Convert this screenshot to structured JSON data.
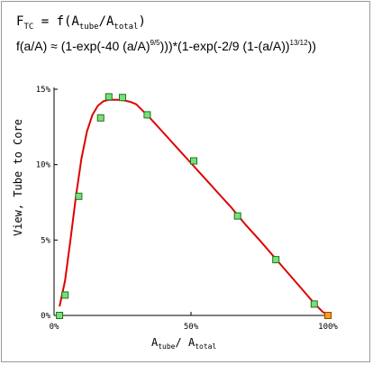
{
  "chart_data": {
    "type": "scatter",
    "title": {
      "lhs": "F",
      "lhs_sub": "TC",
      "eq": " = f(A",
      "arg1_sub": "tube",
      "slash": "/A",
      "arg2_sub": "total",
      "close": ")"
    },
    "formula": {
      "part1": "f(a/A) ≈ (1-exp(-40 (a/A)",
      "exp1": "9/5",
      "part2": ")))*(1-exp(-2/9 (1-(a/A))",
      "exp2": "13/12",
      "part3": "))"
    },
    "xlabel": {
      "main1": "A",
      "sub1": "tube",
      "mid": "/ A",
      "sub2": "total"
    },
    "ylabel": "View, Tube to Core",
    "x_ticks": [
      {
        "value": 0,
        "label": "0%"
      },
      {
        "value": 0.5,
        "label": "50%"
      },
      {
        "value": 1.0,
        "label": "100%"
      }
    ],
    "y_ticks": [
      {
        "value": 0,
        "label": "0%"
      },
      {
        "value": 0.05,
        "label": "5%"
      },
      {
        "value": 0.1,
        "label": "10%"
      },
      {
        "value": 0.15,
        "label": "15%"
      }
    ],
    "xlim": [
      0,
      1
    ],
    "ylim": [
      0,
      0.15
    ],
    "grid": false,
    "points": [
      {
        "x": 0.02,
        "y": 0.0
      },
      {
        "x": 0.04,
        "y": 0.0135
      },
      {
        "x": 0.09,
        "y": 0.079
      },
      {
        "x": 0.17,
        "y": 0.131
      },
      {
        "x": 0.2,
        "y": 0.145
      },
      {
        "x": 0.25,
        "y": 0.1445
      },
      {
        "x": 0.34,
        "y": 0.133
      },
      {
        "x": 0.51,
        "y": 0.1025
      },
      {
        "x": 0.67,
        "y": 0.066
      },
      {
        "x": 0.81,
        "y": 0.037
      },
      {
        "x": 0.95,
        "y": 0.0075
      },
      {
        "x": 1.0,
        "y": 0.0
      }
    ],
    "highlight_point_index": 11,
    "curve": {
      "color": "#e00000",
      "x": [
        0.02,
        0.04,
        0.06,
        0.08,
        0.1,
        0.12,
        0.14,
        0.16,
        0.18,
        0.2,
        0.22,
        0.24,
        0.26,
        0.28,
        0.3,
        0.35,
        0.4,
        0.45,
        0.5,
        0.55,
        0.6,
        0.65,
        0.7,
        0.75,
        0.8,
        0.85,
        0.9,
        0.95,
        0.98,
        1.0
      ],
      "y": [
        0.006,
        0.023,
        0.05,
        0.079,
        0.104,
        0.122,
        0.133,
        0.139,
        0.142,
        0.143,
        0.143,
        0.143,
        0.1425,
        0.1415,
        0.14,
        0.131,
        0.121,
        0.111,
        0.101,
        0.091,
        0.081,
        0.071,
        0.06,
        0.05,
        0.0395,
        0.029,
        0.0185,
        0.008,
        0.0025,
        0.0
      ]
    },
    "colors": {
      "marker_fill": "#78e078",
      "marker_stroke": "#207020",
      "highlight_fill": "#ff9a1a",
      "highlight_stroke": "#8a4a00",
      "axis": "#000000",
      "text": "#000000"
    }
  }
}
